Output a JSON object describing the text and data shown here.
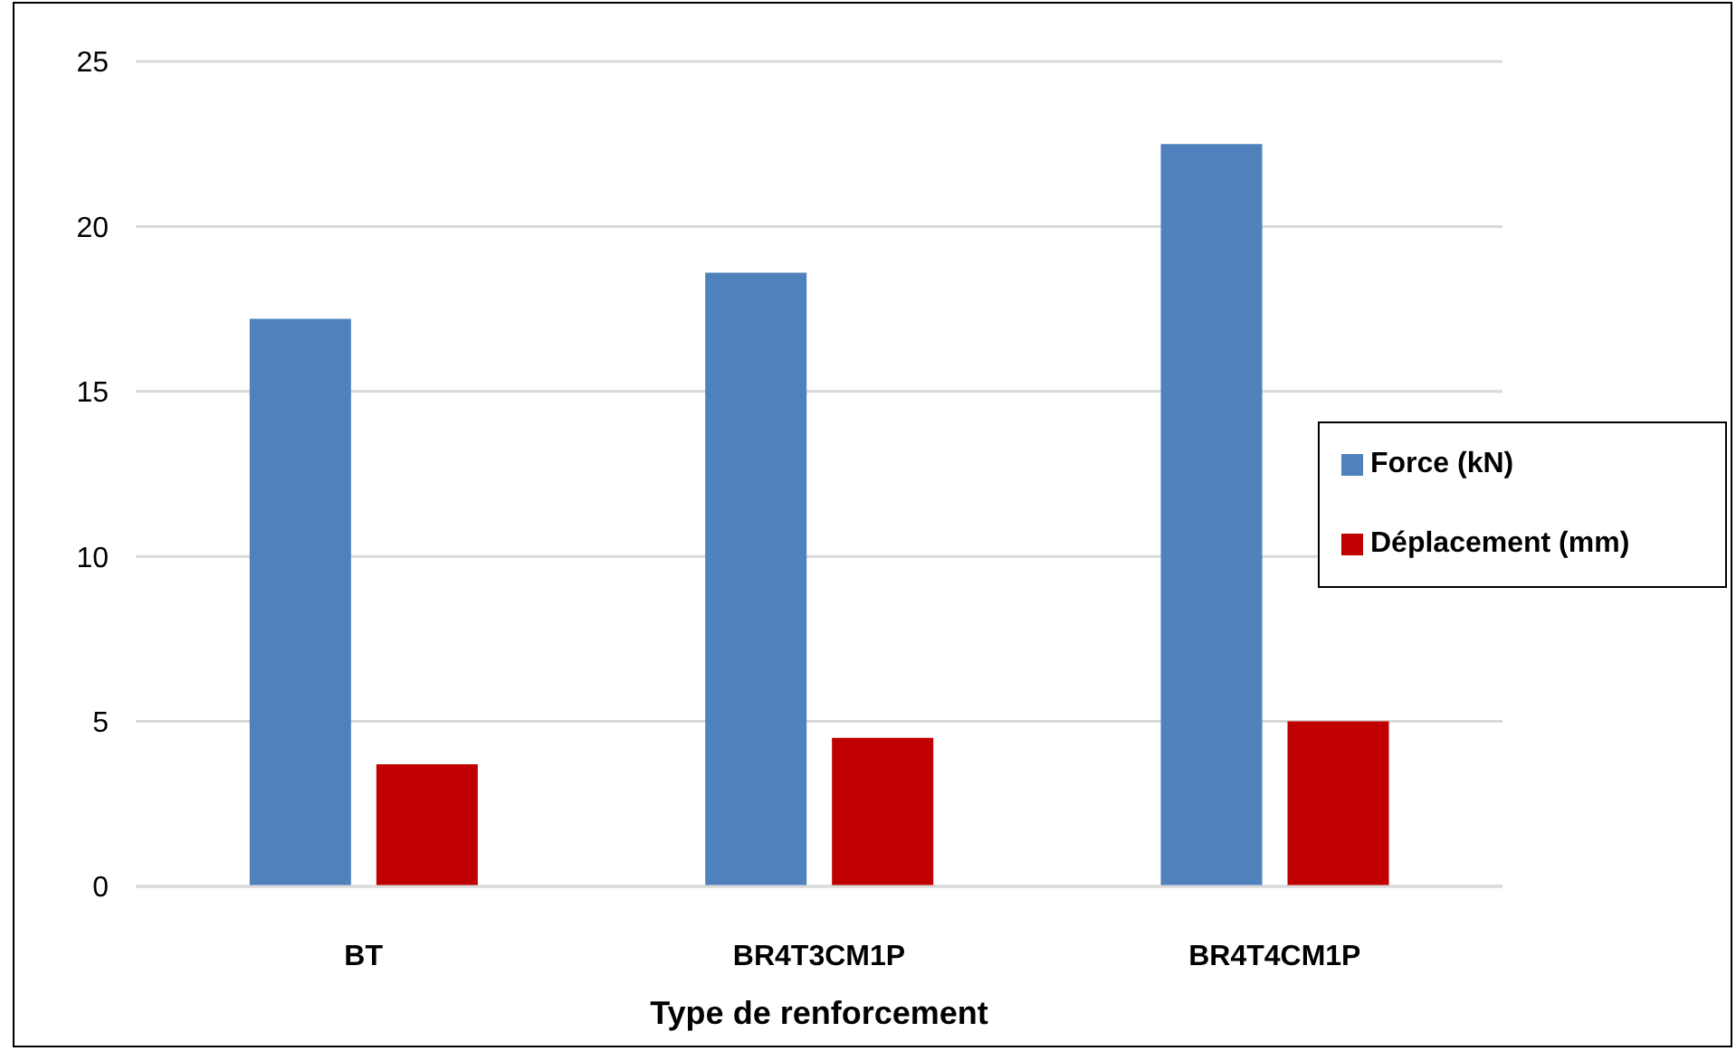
{
  "chart_data": {
    "type": "bar",
    "xlabel": "Type de renforcement",
    "categories": [
      "BT",
      "BR4T3CM1P",
      "BR4T4CM1P"
    ],
    "series": [
      {
        "name": "Force (kN)",
        "color": "#4f81bd",
        "values": [
          17.2,
          18.6,
          22.5
        ]
      },
      {
        "name": "Déplacement (mm)",
        "color": "#c00000",
        "values": [
          3.7,
          4.5,
          5.0
        ]
      }
    ],
    "ylim": [
      0,
      25
    ],
    "yticks": [
      0,
      5,
      10,
      15,
      20,
      25
    ],
    "grid": "y",
    "legend": "right"
  }
}
